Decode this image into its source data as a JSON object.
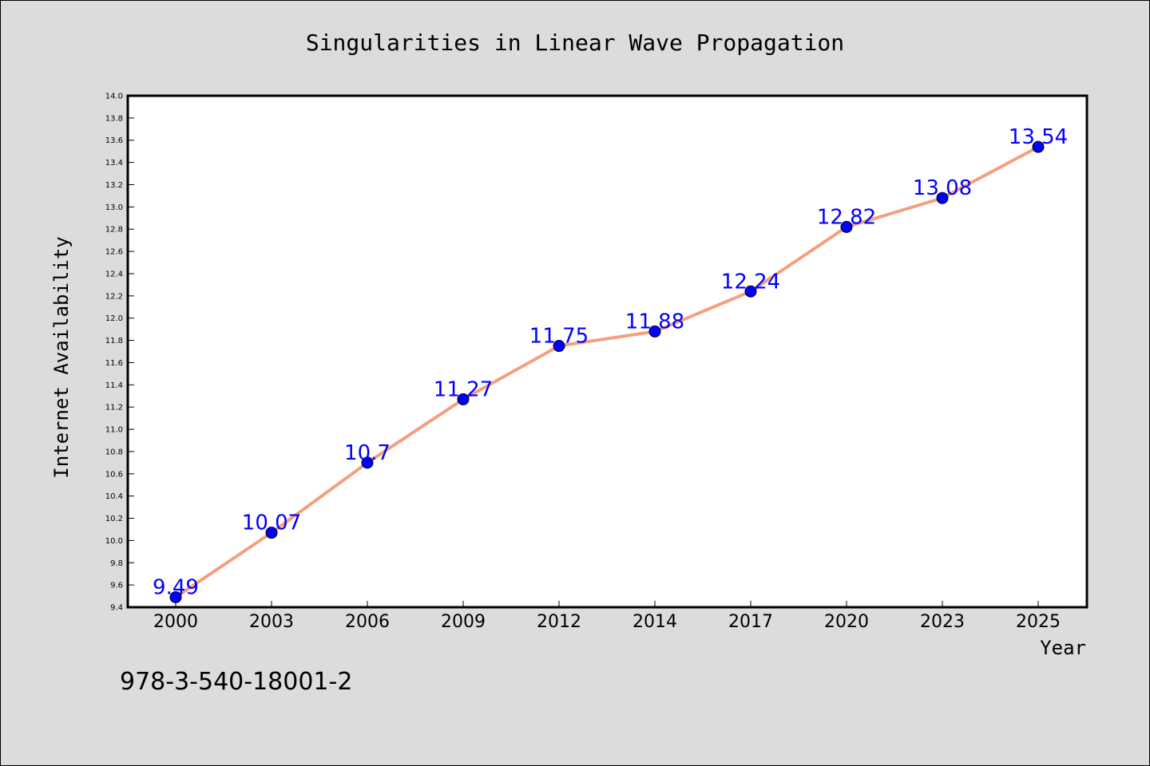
{
  "chart_data": {
    "type": "line",
    "title": "Singularities in Linear Wave Propagation",
    "xlabel": "Year",
    "ylabel": "Internet Availability",
    "categories": [
      "2000",
      "2003",
      "2006",
      "2009",
      "2012",
      "2014",
      "2017",
      "2020",
      "2023",
      "2025"
    ],
    "series": [
      {
        "values": [
          9.49,
          10.07,
          10.7,
          11.27,
          11.75,
          11.88,
          12.24,
          12.82,
          13.08,
          13.54
        ],
        "data_labels": [
          "9.49",
          "10.07",
          "10.7",
          "11.27",
          "11.75",
          "11.88",
          "12.24",
          "12.82",
          "13.08",
          "13.54"
        ],
        "line_color": "#f4a07e",
        "marker_color": "#0000ff"
      }
    ],
    "ylim": [
      9.4,
      14.0
    ],
    "yticks": [
      "9.4",
      "9.6",
      "9.8",
      "10.0",
      "10.2",
      "10.4",
      "10.6",
      "10.8",
      "11.0",
      "11.2",
      "11.4",
      "11.6",
      "11.8",
      "12.0",
      "12.2",
      "12.4",
      "12.6",
      "12.8",
      "13.0",
      "13.2",
      "13.4",
      "13.6",
      "13.8",
      "14.0"
    ],
    "grid": false,
    "legend": "none",
    "label_color": "#0000ff",
    "plot_background": "#ffffff",
    "figure_background": "#dcdcdc"
  },
  "footer_text": "978-3-540-18001-2"
}
